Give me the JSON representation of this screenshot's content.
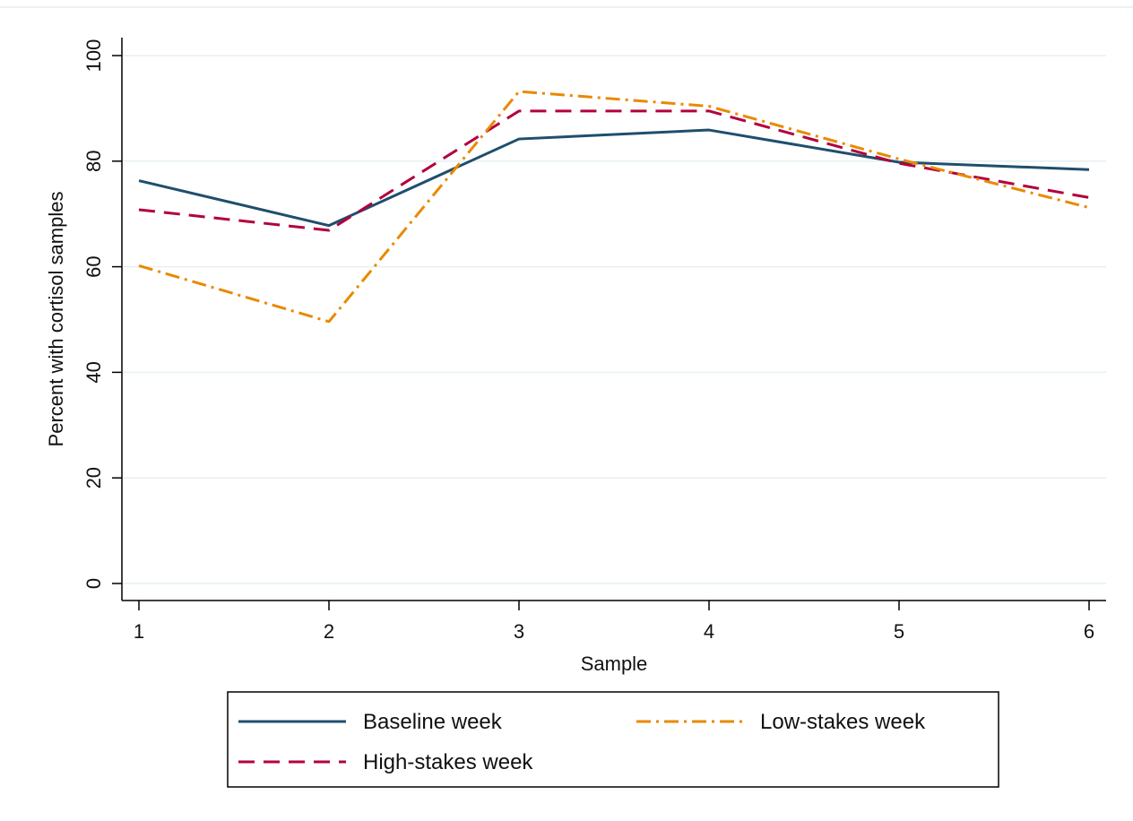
{
  "chart_data": {
    "type": "line",
    "xlabel": "Sample",
    "ylabel": "Percent with cortisol samples",
    "x": [
      1,
      2,
      3,
      4,
      5,
      6
    ],
    "xlim": [
      1,
      6
    ],
    "ylim": [
      0,
      100
    ],
    "xticks": [
      "1",
      "2",
      "3",
      "4",
      "5",
      "6"
    ],
    "yticks": [
      "0",
      "20",
      "40",
      "60",
      "80",
      "100"
    ],
    "grid": true,
    "legend_position": "bottom",
    "series": [
      {
        "name": "Baseline week",
        "values": [
          76.3,
          67.8,
          84.2,
          85.9,
          79.8,
          78.4
        ],
        "color": "#1f4e6e",
        "dash": "solid"
      },
      {
        "name": "High-stakes week",
        "values": [
          70.8,
          66.9,
          89.5,
          89.5,
          79.6,
          73.1
        ],
        "color": "#b3003c",
        "dash": "dash"
      },
      {
        "name": "Low-stakes week",
        "values": [
          60.2,
          49.6,
          93.2,
          90.4,
          80.4,
          71.2
        ],
        "color": "#e88a00",
        "dash": "dashdot"
      }
    ]
  }
}
